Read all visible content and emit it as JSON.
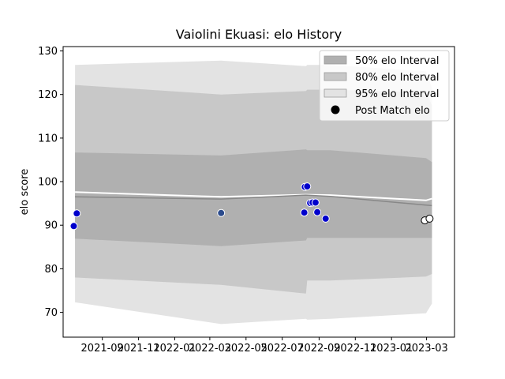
{
  "chart_data": {
    "type": "line",
    "title": "Vaiolini Ekuasi: elo History",
    "xlabel": "",
    "ylabel": "elo score",
    "xlim": [
      "2021-06-27",
      "2023-04-17"
    ],
    "ylim": [
      64.3,
      131.0
    ],
    "y_ticks": [
      70,
      80,
      90,
      100,
      110,
      120,
      130
    ],
    "x_ticks": [
      "2021-09",
      "2021-11",
      "2022-01",
      "2022-03",
      "2022-05",
      "2022-07",
      "2022-09",
      "2022-11",
      "2023-01",
      "2023-03"
    ],
    "legend_placement": "top-right",
    "grid": false,
    "legend": [
      {
        "label": "50% elo Interval",
        "kind": "band50"
      },
      {
        "label": "80% elo Interval",
        "kind": "band80"
      },
      {
        "label": "95% elo Interval",
        "kind": "band95"
      },
      {
        "label": "Post Match elo",
        "kind": "marker"
      }
    ],
    "colors": {
      "band50": "#b0b0b0",
      "band80": "#c8c8c8",
      "band95": "#e3e3e3",
      "mean_line": "#888888",
      "white_line": "#ffffff",
      "marker_blue": "#0000cc",
      "marker_dark": "#2b4b8c",
      "marker_white": "#ffffff"
    },
    "bands": {
      "x": [
        "2021-07-17",
        "2022-03-20",
        "2022-08-10",
        "2022-08-12",
        "2022-09-20",
        "2023-02-28",
        "2023-03-10"
      ],
      "b95_upper": [
        126.8,
        127.8,
        126.5,
        126.8,
        126.8,
        125.3,
        121.5
      ],
      "b95_lower": [
        72.3,
        67.3,
        68.5,
        68.3,
        68.5,
        69.8,
        72.0
      ],
      "b80_upper": [
        122.2,
        120.0,
        120.8,
        121.1,
        121.1,
        120.5,
        117.5
      ],
      "b80_lower": [
        78.0,
        76.3,
        74.3,
        77.3,
        77.3,
        78.2,
        78.8
      ],
      "b50_upper": [
        106.7,
        106.0,
        107.4,
        107.2,
        107.2,
        105.4,
        104.5
      ],
      "b50_lower": [
        86.9,
        85.2,
        86.5,
        87.1,
        87.1,
        87.1,
        87.1
      ]
    },
    "mean_line": {
      "x": [
        "2021-07-17",
        "2022-03-20",
        "2022-08-10",
        "2022-09-20",
        "2023-02-28",
        "2023-03-10"
      ],
      "y": [
        96.5,
        96.0,
        96.9,
        96.6,
        94.6,
        94.5
      ]
    },
    "white_line": {
      "x": [
        "2021-07-17",
        "2022-03-20",
        "2022-08-10",
        "2022-09-20",
        "2023-02-28",
        "2023-03-10"
      ],
      "y": [
        97.6,
        96.5,
        97.0,
        96.9,
        95.7,
        96.1
      ]
    },
    "points": [
      {
        "x": "2021-07-15",
        "y": 89.8,
        "fill": "marker_blue"
      },
      {
        "x": "2021-07-20",
        "y": 92.7,
        "fill": "marker_blue"
      },
      {
        "x": "2022-03-20",
        "y": 92.8,
        "fill": "marker_dark"
      },
      {
        "x": "2022-08-07",
        "y": 92.9,
        "fill": "marker_blue"
      },
      {
        "x": "2022-08-08",
        "y": 98.8,
        "fill": "marker_blue"
      },
      {
        "x": "2022-08-12",
        "y": 98.9,
        "fill": "marker_blue"
      },
      {
        "x": "2022-08-17",
        "y": 95.1,
        "fill": "marker_blue"
      },
      {
        "x": "2022-08-21",
        "y": 95.2,
        "fill": "marker_blue"
      },
      {
        "x": "2022-08-26",
        "y": 95.2,
        "fill": "marker_blue"
      },
      {
        "x": "2022-08-29",
        "y": 93.0,
        "fill": "marker_blue"
      },
      {
        "x": "2022-09-12",
        "y": 91.5,
        "fill": "marker_blue"
      },
      {
        "x": "2023-02-26",
        "y": 91.1,
        "fill": "marker_white"
      },
      {
        "x": "2023-03-06",
        "y": 91.5,
        "fill": "marker_white"
      }
    ]
  }
}
